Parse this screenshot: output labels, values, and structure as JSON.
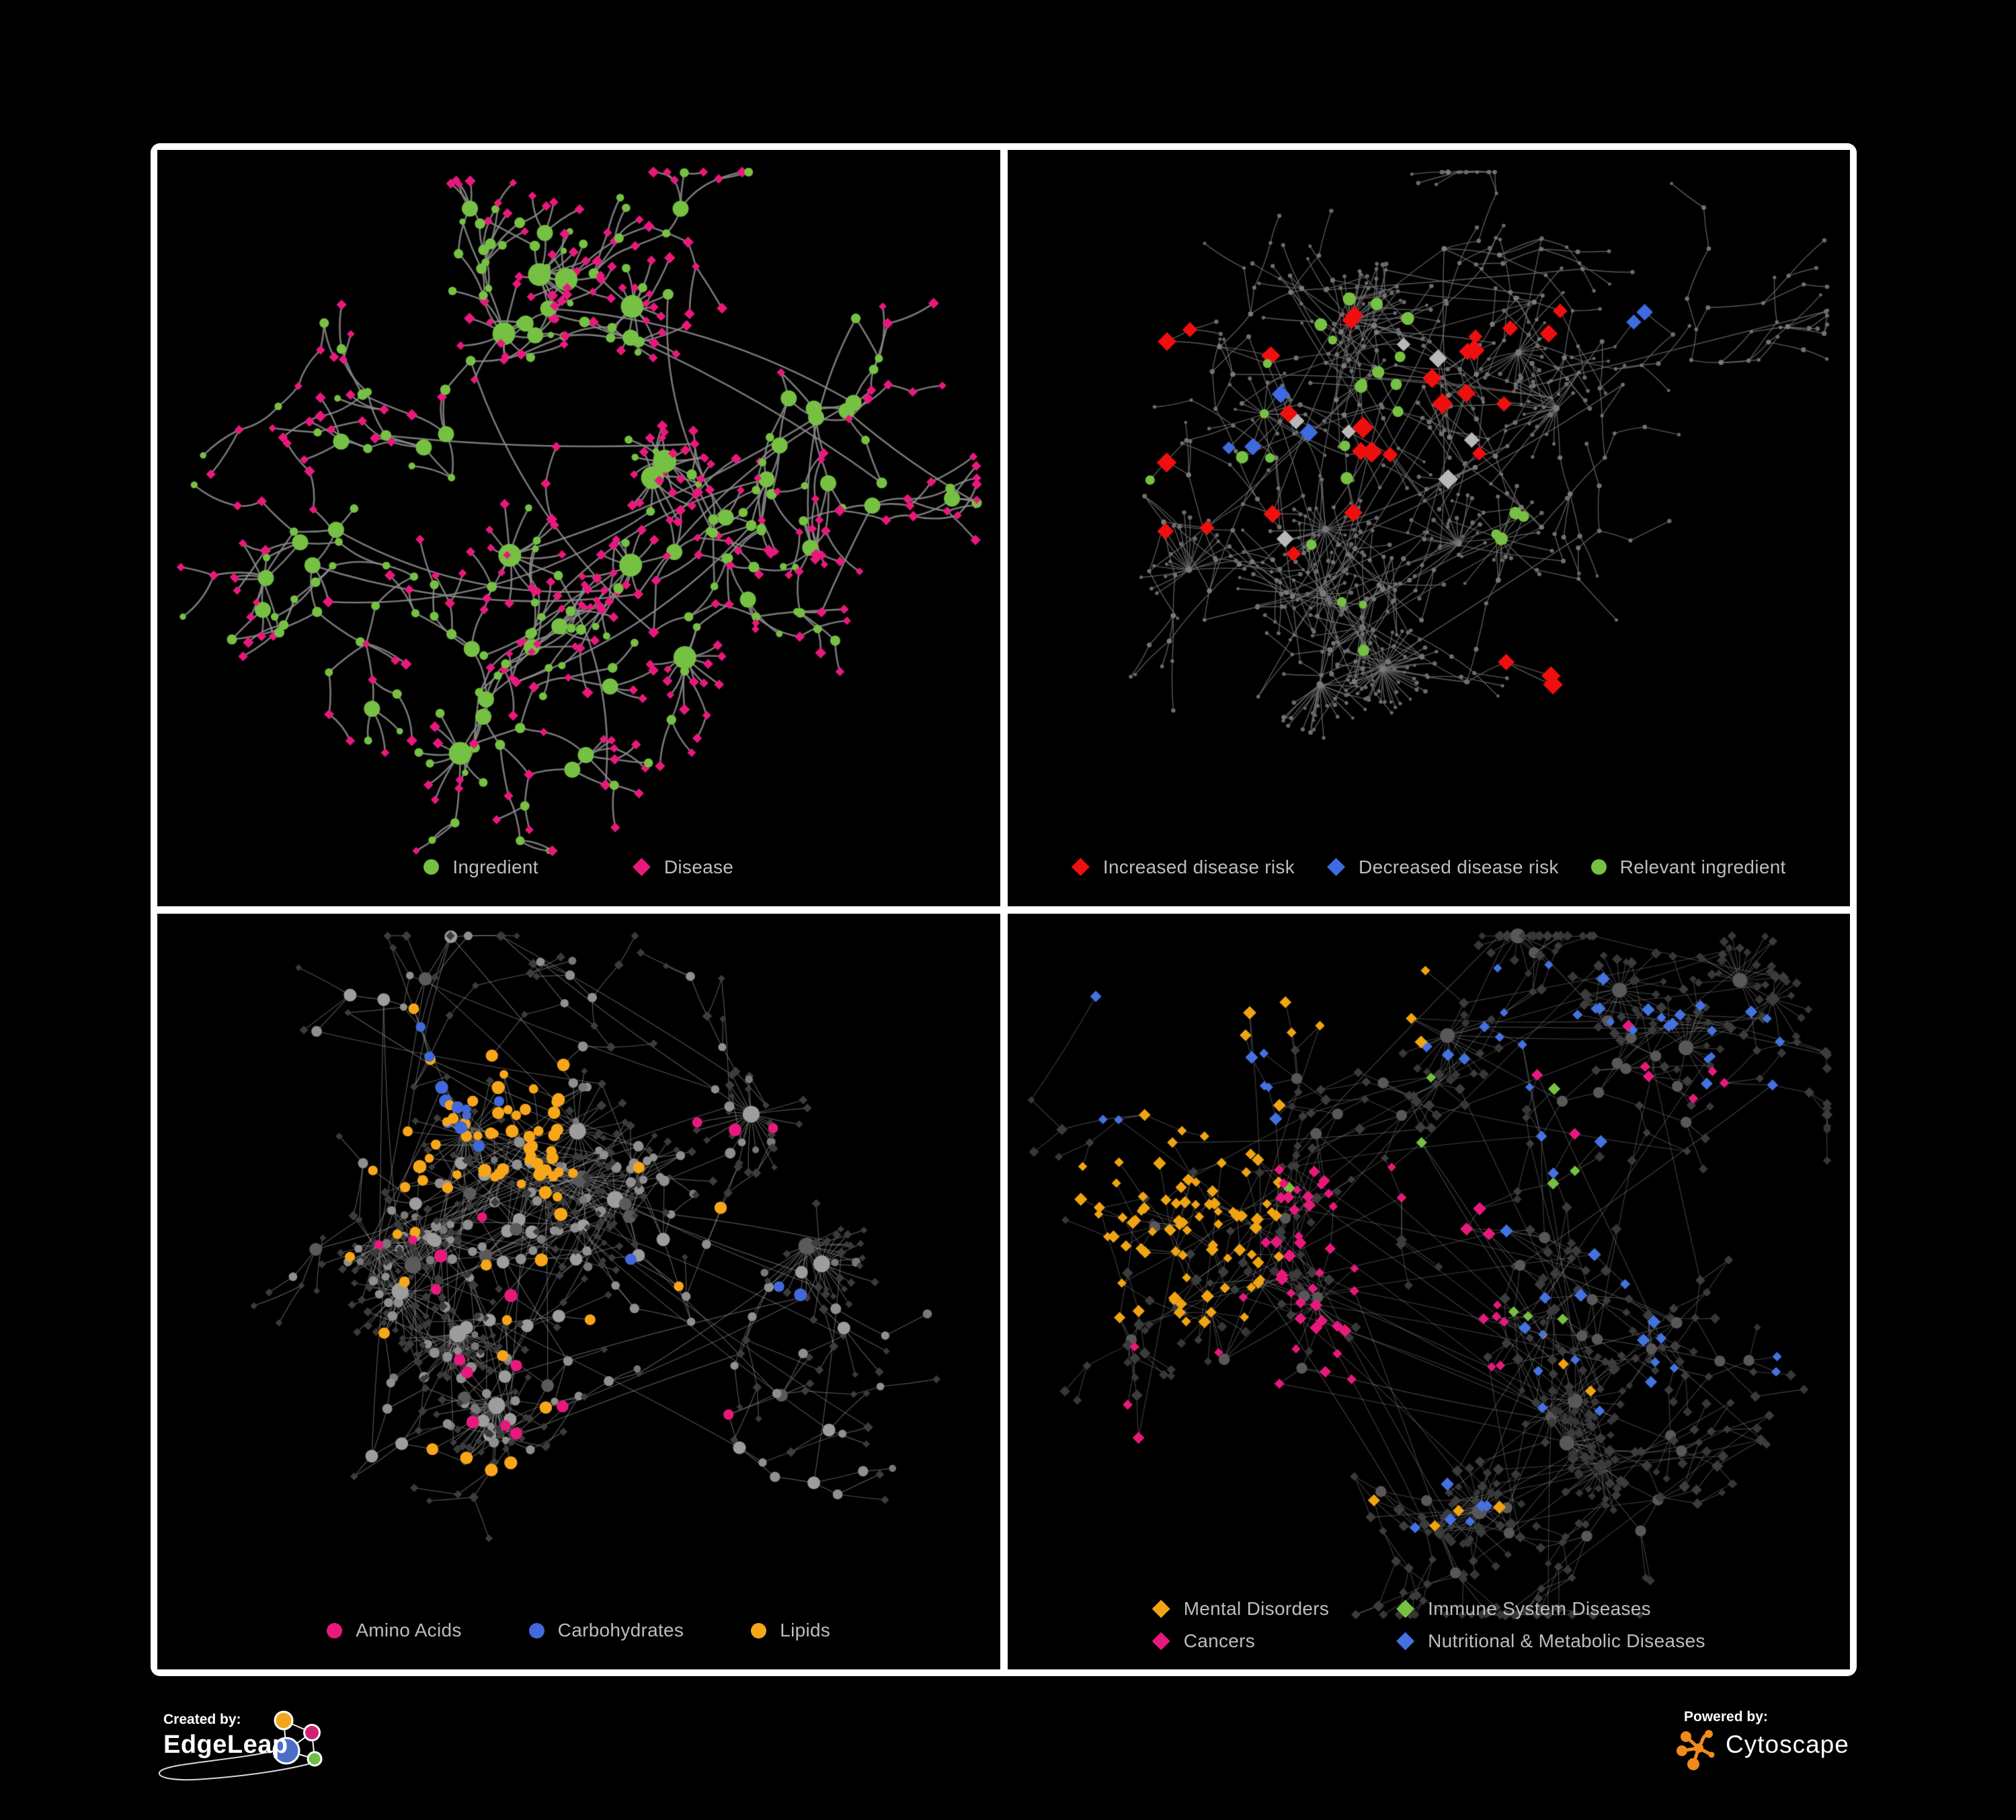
{
  "figure": {
    "background": "#000000",
    "frame_color": "#ffffff"
  },
  "branding": {
    "created_by": {
      "label": "Created by:",
      "name": "EdgeLeap"
    },
    "powered_by": {
      "label": "Powered by:",
      "name": "Cytoscape"
    },
    "edgeleap_logo_colors": {
      "orange": "#f2a51d",
      "pink": "#cf2372",
      "blue": "#4a6fc9",
      "green": "#72bf44"
    },
    "cytoscape_logo_color": "#ef8b1d",
    "logo_line_color": "#ffffff"
  },
  "panels": [
    {
      "id": "ingredient-disease",
      "legend": [
        {
          "label": "Ingredient",
          "shape": "circle",
          "color": "#76c043"
        },
        {
          "label": "Disease",
          "shape": "diamond",
          "color": "#e8197d"
        }
      ],
      "network": {
        "seed": 41,
        "max_nodes": 560,
        "depth": 4,
        "step": 50,
        "edge_color": "#8a8a8a",
        "edge_width": 2.6,
        "edge_opacity": 0.88,
        "curve": 0.35,
        "star_hubs": 10,
        "star_min": 7,
        "star_max": 15,
        "cross_links": 30,
        "clusters": [
          [
            0.4,
            0.28
          ],
          [
            0.24,
            0.36
          ],
          [
            0.2,
            0.52
          ],
          [
            0.33,
            0.47
          ],
          [
            0.28,
            0.63
          ],
          [
            0.47,
            0.42
          ],
          [
            0.55,
            0.57
          ],
          [
            0.4,
            0.78
          ],
          [
            0.63,
            0.27
          ],
          [
            0.77,
            0.3
          ],
          [
            0.6,
            0.72
          ],
          [
            0.8,
            0.54
          ],
          [
            0.16,
            0.22
          ],
          [
            0.52,
            0.14
          ],
          [
            0.36,
            0.9
          ],
          [
            0.7,
            0.6
          ]
        ],
        "rules": {
          "hub": [
            {
              "shape": "circle",
              "color": "#76c043",
              "size": 8,
              "w": 1
            }
          ],
          "hub_scale": 1.0,
          "hub_max": 9,
          "mid": [
            {
              "shape": "circle",
              "color": "#76c043",
              "size": 6.5,
              "w": 0.55
            },
            {
              "shape": "diamond",
              "color": "#e8197d",
              "size": 7,
              "w": 0.45
            }
          ],
          "leaf": [
            {
              "shape": "diamond",
              "color": "#e8197d",
              "size": 6.8,
              "w": 0.78
            },
            {
              "shape": "circle",
              "color": "#76c043",
              "size": 5.5,
              "w": 0.22
            }
          ]
        },
        "highlights": []
      }
    },
    {
      "id": "disease-risk",
      "legend": [
        {
          "label": "Increased disease risk",
          "shape": "diamond",
          "color": "#ef0f0f"
        },
        {
          "label": "Decreased disease risk",
          "shape": "diamond",
          "color": "#3f6be0"
        },
        {
          "label": "Relevant ingredient",
          "shape": "circle",
          "color": "#76c043"
        }
      ],
      "network": {
        "seed": 7,
        "max_nodes": 720,
        "depth": 4,
        "step": 52,
        "edge_color": "#6f6f6f",
        "edge_width": 1.4,
        "edge_opacity": 0.8,
        "curve": 0.12,
        "star_hubs": 14,
        "star_min": 9,
        "star_max": 22,
        "cross_links": 60,
        "clusters": [
          [
            0.33,
            0.22
          ],
          [
            0.44,
            0.28
          ],
          [
            0.25,
            0.35
          ],
          [
            0.38,
            0.42
          ],
          [
            0.5,
            0.38
          ],
          [
            0.3,
            0.55
          ],
          [
            0.45,
            0.6
          ],
          [
            0.2,
            0.7
          ],
          [
            0.6,
            0.2
          ],
          [
            0.7,
            0.3
          ],
          [
            0.65,
            0.55
          ],
          [
            0.75,
            0.7
          ],
          [
            0.55,
            0.8
          ],
          [
            0.15,
            0.25
          ],
          [
            0.85,
            0.28
          ],
          [
            0.4,
            0.8
          ],
          [
            0.12,
            0.5
          ],
          [
            0.52,
            0.1
          ]
        ],
        "rules": {
          "hub": [
            {
              "shape": "circle",
              "color": "#7a7a7a",
              "size": 3.4,
              "w": 1
            }
          ],
          "hub_scale": 0.1,
          "hub_max": 1.5,
          "mid": [
            {
              "shape": "circle",
              "color": "#717171",
              "size": 3.0,
              "w": 1
            }
          ],
          "leaf": [
            {
              "shape": "circle",
              "color": "#6a6a6a",
              "size": 2.7,
              "w": 1
            }
          ]
        },
        "highlights": [
          {
            "shape": "diamond",
            "color": "#ef0f0f",
            "size": 13,
            "count": 22,
            "region": [
              0.1,
              0.2,
              0.58,
              0.6
            ]
          },
          {
            "shape": "diamond",
            "color": "#ef0f0f",
            "size": 13,
            "count": 5,
            "region": [
              0.55,
              0.1,
              0.8,
              0.45
            ]
          },
          {
            "shape": "diamond",
            "color": "#ef0f0f",
            "size": 13,
            "count": 3,
            "region": [
              0.6,
              0.7,
              0.78,
              0.85
            ]
          },
          {
            "shape": "diamond",
            "color": "#b8b8b8",
            "size": 12,
            "count": 7,
            "region": [
              0.12,
              0.25,
              0.58,
              0.58
            ]
          },
          {
            "shape": "diamond",
            "color": "#3f6be0",
            "size": 12,
            "count": 2,
            "region": [
              0.76,
              0.15,
              0.82,
              0.22
            ]
          },
          {
            "shape": "diamond",
            "color": "#3f6be0",
            "size": 12,
            "count": 4,
            "region": [
              0.2,
              0.33,
              0.36,
              0.48
            ]
          },
          {
            "shape": "circle",
            "color": "#76c043",
            "size": 8,
            "count": 18,
            "region": [
              0.1,
              0.17,
              0.5,
              0.5
            ]
          },
          {
            "shape": "circle",
            "color": "#76c043",
            "size": 8,
            "count": 4,
            "region": [
              0.58,
              0.52,
              0.64,
              0.58
            ]
          },
          {
            "shape": "circle",
            "color": "#76c043",
            "size": 7,
            "count": 4,
            "region": [
              0.05,
              0.55,
              0.45,
              0.75
            ]
          }
        ]
      }
    },
    {
      "id": "nutrient-classes",
      "legend": [
        {
          "label": "Amino Acids",
          "shape": "circle",
          "color": "#e8197d"
        },
        {
          "label": "Carbohydrates",
          "shape": "circle",
          "color": "#4169d9"
        },
        {
          "label": "Lipids",
          "shape": "circle",
          "color": "#f7a61a"
        }
      ],
      "network": {
        "seed": 23,
        "max_nodes": 680,
        "depth": 4,
        "step": 55,
        "edge_color": "#a6a6a6",
        "edge_width": 1.2,
        "edge_opacity": 0.5,
        "curve": 0.08,
        "star_hubs": 12,
        "star_min": 12,
        "star_max": 30,
        "cross_links": 120,
        "clusters": [
          [
            0.18,
            0.3
          ],
          [
            0.28,
            0.22
          ],
          [
            0.35,
            0.3
          ],
          [
            0.25,
            0.42
          ],
          [
            0.4,
            0.2
          ],
          [
            0.15,
            0.55
          ],
          [
            0.3,
            0.6
          ],
          [
            0.45,
            0.5
          ],
          [
            0.55,
            0.35
          ],
          [
            0.5,
            0.72
          ],
          [
            0.65,
            0.6
          ],
          [
            0.35,
            0.82
          ],
          [
            0.6,
            0.15
          ],
          [
            0.75,
            0.25
          ],
          [
            0.7,
            0.75
          ],
          [
            0.2,
            0.85
          ],
          [
            0.85,
            0.45
          ]
        ],
        "rules": {
          "hub": [
            {
              "shape": "circle",
              "color": "#9d9d9d",
              "size": 7.5,
              "w": 0.8
            },
            {
              "shape": "circle",
              "color": "#5a5a5a",
              "size": 7.5,
              "w": 0.2
            }
          ],
          "hub_scale": 0.5,
          "hub_max": 5,
          "mid": [
            {
              "shape": "circle",
              "color": "#8f8f8f",
              "size": 6.5,
              "w": 0.5
            },
            {
              "shape": "diamond",
              "color": "#3d3d3d",
              "size": 6,
              "w": 0.5
            }
          ],
          "leaf": [
            {
              "shape": "diamond",
              "color": "#3b3b3b",
              "size": 5.5,
              "w": 0.9
            },
            {
              "shape": "circle",
              "color": "#787878",
              "size": 5.5,
              "w": 0.1
            }
          ]
        },
        "highlights": [
          {
            "shape": "circle",
            "color": "#f7a61a",
            "size": 8,
            "count": 55,
            "region": [
              0.17,
              0.08,
              0.5,
              0.4
            ]
          },
          {
            "shape": "circle",
            "color": "#f7a61a",
            "size": 8,
            "count": 16,
            "region": [
              0.1,
              0.35,
              0.72,
              0.75
            ]
          },
          {
            "shape": "circle",
            "color": "#f7a61a",
            "size": 8,
            "count": 4,
            "region": [
              0.3,
              0.8,
              0.6,
              0.95
            ]
          },
          {
            "shape": "circle",
            "color": "#4169d9",
            "size": 8,
            "count": 12,
            "region": [
              0.22,
              0.08,
              0.48,
              0.33
            ]
          },
          {
            "shape": "circle",
            "color": "#4169d9",
            "size": 8,
            "count": 3,
            "region": [
              0.55,
              0.45,
              0.8,
              0.65
            ]
          },
          {
            "shape": "circle",
            "color": "#e8197d",
            "size": 8,
            "count": 6,
            "region": [
              0.05,
              0.15,
              0.4,
              0.7
            ]
          },
          {
            "shape": "circle",
            "color": "#e8197d",
            "size": 8,
            "count": 8,
            "region": [
              0.35,
              0.55,
              0.8,
              0.9
            ]
          },
          {
            "shape": "circle",
            "color": "#e8197d",
            "size": 8,
            "count": 3,
            "region": [
              0.45,
              0.03,
              0.9,
              0.3
            ]
          }
        ]
      }
    },
    {
      "id": "disease-classes",
      "legend": [
        {
          "label": "Mental Disorders",
          "shape": "diamond",
          "color": "#f0a413"
        },
        {
          "label": "Immune System Diseases",
          "shape": "diamond",
          "color": "#76c043"
        },
        {
          "label": "Cancers",
          "shape": "diamond",
          "color": "#e8197d"
        },
        {
          "label": "Nutritional & Metabolic Diseases",
          "shape": "diamond",
          "color": "#4472e0"
        }
      ],
      "network": {
        "seed": 59,
        "max_nodes": 860,
        "depth": 4,
        "step": 48,
        "edge_color": "#989898",
        "edge_width": 1.1,
        "edge_opacity": 0.42,
        "curve": 0.06,
        "star_hubs": 12,
        "star_min": 10,
        "star_max": 24,
        "cross_links": 240,
        "clusters": [
          [
            0.12,
            0.4
          ],
          [
            0.2,
            0.3
          ],
          [
            0.3,
            0.25
          ],
          [
            0.35,
            0.4
          ],
          [
            0.45,
            0.35
          ],
          [
            0.4,
            0.55
          ],
          [
            0.55,
            0.45
          ],
          [
            0.5,
            0.25
          ],
          [
            0.6,
            0.6
          ],
          [
            0.65,
            0.3
          ],
          [
            0.75,
            0.45
          ],
          [
            0.8,
            0.6
          ],
          [
            0.7,
            0.78
          ],
          [
            0.3,
            0.7
          ],
          [
            0.2,
            0.6
          ],
          [
            0.85,
            0.25
          ],
          [
            0.6,
            0.1
          ],
          [
            0.4,
            0.85
          ],
          [
            0.75,
            0.88
          ],
          [
            0.9,
            0.5
          ]
        ],
        "rules": {
          "hub": [
            {
              "shape": "circle",
              "color": "#585858",
              "size": 7,
              "w": 0.85
            },
            {
              "shape": "diamond",
              "color": "#3c3c3c",
              "size": 7.5,
              "w": 0.15
            }
          ],
          "hub_scale": 0.3,
          "hub_max": 4,
          "mid": [
            {
              "shape": "diamond",
              "color": "#3c3c3c",
              "size": 7,
              "w": 1
            }
          ],
          "leaf": [
            {
              "shape": "diamond",
              "color": "#373737",
              "size": 6.3,
              "w": 1
            }
          ]
        },
        "highlights": [
          {
            "shape": "diamond",
            "color": "#f0a413",
            "size": 8,
            "count": 85,
            "region": [
              0.03,
              0.22,
              0.3,
              0.6
            ]
          },
          {
            "shape": "diamond",
            "color": "#f0a413",
            "size": 8,
            "count": 8,
            "region": [
              0.1,
              0.02,
              0.5,
              0.15
            ]
          },
          {
            "shape": "diamond",
            "color": "#f0a413",
            "size": 8,
            "count": 7,
            "region": [
              0.3,
              0.62,
              0.72,
              0.95
            ]
          },
          {
            "shape": "diamond",
            "color": "#e8197d",
            "size": 8,
            "count": 50,
            "region": [
              0.28,
              0.35,
              0.6,
              0.7
            ]
          },
          {
            "shape": "diamond",
            "color": "#e8197d",
            "size": 8,
            "count": 8,
            "region": [
              0.6,
              0.12,
              0.92,
              0.3
            ]
          },
          {
            "shape": "diamond",
            "color": "#e8197d",
            "size": 8,
            "count": 5,
            "region": [
              0.05,
              0.55,
              0.3,
              0.9
            ]
          },
          {
            "shape": "diamond",
            "color": "#4472e0",
            "size": 8,
            "count": 40,
            "region": [
              0.58,
              0.08,
              0.97,
              0.75
            ]
          },
          {
            "shape": "diamond",
            "color": "#4472e0",
            "size": 8,
            "count": 12,
            "region": [
              0.28,
              0.02,
              0.75,
              0.18
            ]
          },
          {
            "shape": "diamond",
            "color": "#4472e0",
            "size": 8,
            "count": 8,
            "region": [
              0.05,
              0.05,
              0.3,
              0.35
            ]
          },
          {
            "shape": "diamond",
            "color": "#4472e0",
            "size": 8,
            "count": 6,
            "region": [
              0.3,
              0.7,
              0.6,
              0.95
            ]
          },
          {
            "shape": "diamond",
            "color": "#76c043",
            "size": 8,
            "count": 9,
            "region": [
              0.3,
              0.2,
              0.7,
              0.6
            ]
          }
        ]
      }
    }
  ]
}
